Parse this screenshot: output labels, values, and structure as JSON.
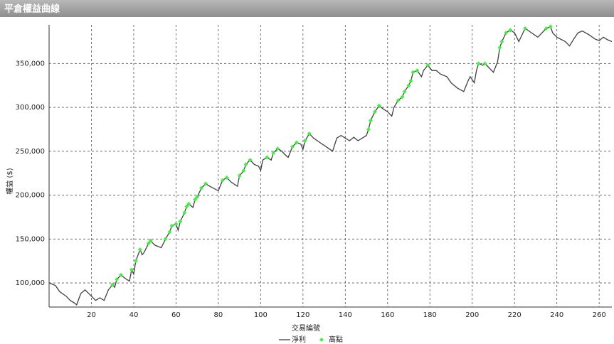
{
  "chart_data": {
    "type": "line",
    "title": "平倉權益曲線",
    "xlabel": "交易編號",
    "ylabel": "權益 ($)",
    "xlim": [
      0,
      266
    ],
    "ylim": [
      72500,
      394000
    ],
    "xticks": [
      20,
      40,
      60,
      80,
      100,
      120,
      140,
      160,
      180,
      200,
      220,
      240,
      260
    ],
    "yticks": [
      {
        "value": 100000,
        "label": "100,000"
      },
      {
        "value": 150000,
        "label": "150,000"
      },
      {
        "value": 200000,
        "label": "200,000"
      },
      {
        "value": 250000,
        "label": "250,000"
      },
      {
        "value": 300000,
        "label": "300,000"
      },
      {
        "value": 350000,
        "label": "350,000"
      }
    ],
    "grid": true,
    "legend": "bottom",
    "series": [
      {
        "name": "淨利",
        "color": "#404040",
        "marker": "none",
        "x": [
          0,
          3,
          5,
          8,
          10,
          12,
          13,
          15,
          17,
          20,
          22,
          24,
          26,
          28,
          30,
          31,
          32,
          34,
          36,
          38,
          39,
          40,
          41,
          43,
          44,
          45,
          47,
          48,
          50,
          53,
          55,
          57,
          58,
          60,
          61,
          62,
          64,
          65,
          66,
          68,
          69,
          70,
          72,
          74,
          76,
          80,
          82,
          84,
          86,
          89,
          90,
          92,
          93,
          95,
          97,
          99,
          100,
          101,
          103,
          105,
          106,
          108,
          110,
          112,
          113,
          115,
          117,
          119,
          120,
          121,
          123,
          125,
          128,
          131,
          134,
          136,
          138,
          140,
          142,
          144,
          146,
          148,
          150,
          151,
          152,
          154,
          156,
          158,
          160,
          162,
          163,
          165,
          167,
          168,
          170,
          171,
          172,
          174,
          176,
          177,
          179,
          181,
          183,
          185,
          188,
          190,
          193,
          196,
          198,
          199,
          201,
          202,
          203,
          205,
          206,
          208,
          210,
          212,
          213,
          214,
          216,
          218,
          220,
          222,
          224,
          225,
          228,
          231,
          233,
          235,
          237,
          238,
          240,
          244,
          246,
          248,
          250,
          252,
          255,
          258,
          260,
          262,
          264,
          266
        ],
        "values": [
          100000,
          97000,
          90000,
          85000,
          80000,
          77000,
          75000,
          88000,
          92000,
          85000,
          80000,
          83000,
          80000,
          92000,
          98000,
          95000,
          104000,
          109000,
          105000,
          102000,
          115000,
          110000,
          125000,
          138000,
          132000,
          135000,
          145000,
          148000,
          143000,
          140000,
          150000,
          158000,
          165000,
          167000,
          160000,
          170000,
          180000,
          187000,
          190000,
          186000,
          195000,
          198000,
          208000,
          213000,
          210000,
          205000,
          217000,
          220000,
          215000,
          210000,
          222000,
          228000,
          235000,
          240000,
          235000,
          233000,
          228000,
          240000,
          243000,
          240000,
          248000,
          253000,
          250000,
          245000,
          243000,
          255000,
          260000,
          258000,
          252000,
          262000,
          270000,
          265000,
          260000,
          255000,
          250000,
          265000,
          268000,
          265000,
          262000,
          266000,
          262000,
          265000,
          268000,
          275000,
          285000,
          295000,
          302000,
          298000,
          295000,
          290000,
          300000,
          308000,
          312000,
          318000,
          325000,
          330000,
          340000,
          342000,
          335000,
          342000,
          348000,
          342000,
          342000,
          338000,
          335000,
          328000,
          322000,
          318000,
          330000,
          335000,
          328000,
          342000,
          350000,
          348000,
          350000,
          345000,
          340000,
          352000,
          368000,
          375000,
          385000,
          388000,
          385000,
          375000,
          385000,
          390000,
          385000,
          380000,
          385000,
          390000,
          392000,
          385000,
          380000,
          375000,
          370000,
          378000,
          385000,
          387000,
          383000,
          378000,
          376000,
          380000,
          377000,
          375000
        ]
      },
      {
        "name": "高點",
        "color": "#44ee44",
        "marker": "diamond",
        "x": [
          30,
          32,
          34,
          39,
          41,
          43,
          47,
          48,
          55,
          57,
          58,
          60,
          62,
          64,
          65,
          66,
          69,
          70,
          72,
          74,
          82,
          84,
          90,
          92,
          93,
          95,
          103,
          106,
          108,
          115,
          117,
          121,
          123,
          151,
          152,
          154,
          156,
          165,
          167,
          168,
          170,
          171,
          172,
          174,
          179,
          203,
          206,
          213,
          214,
          216,
          218,
          225,
          235,
          237
        ],
        "values": [
          98000,
          104000,
          109000,
          115000,
          125000,
          138000,
          145000,
          148000,
          150000,
          158000,
          165000,
          167000,
          170000,
          180000,
          187000,
          190000,
          195000,
          198000,
          208000,
          213000,
          217000,
          220000,
          222000,
          228000,
          235000,
          240000,
          243000,
          248000,
          253000,
          255000,
          260000,
          262000,
          270000,
          275000,
          285000,
          295000,
          302000,
          308000,
          312000,
          318000,
          325000,
          330000,
          340000,
          342000,
          348000,
          350000,
          350000,
          368000,
          375000,
          385000,
          388000,
          390000,
          390000,
          392000
        ]
      }
    ]
  }
}
